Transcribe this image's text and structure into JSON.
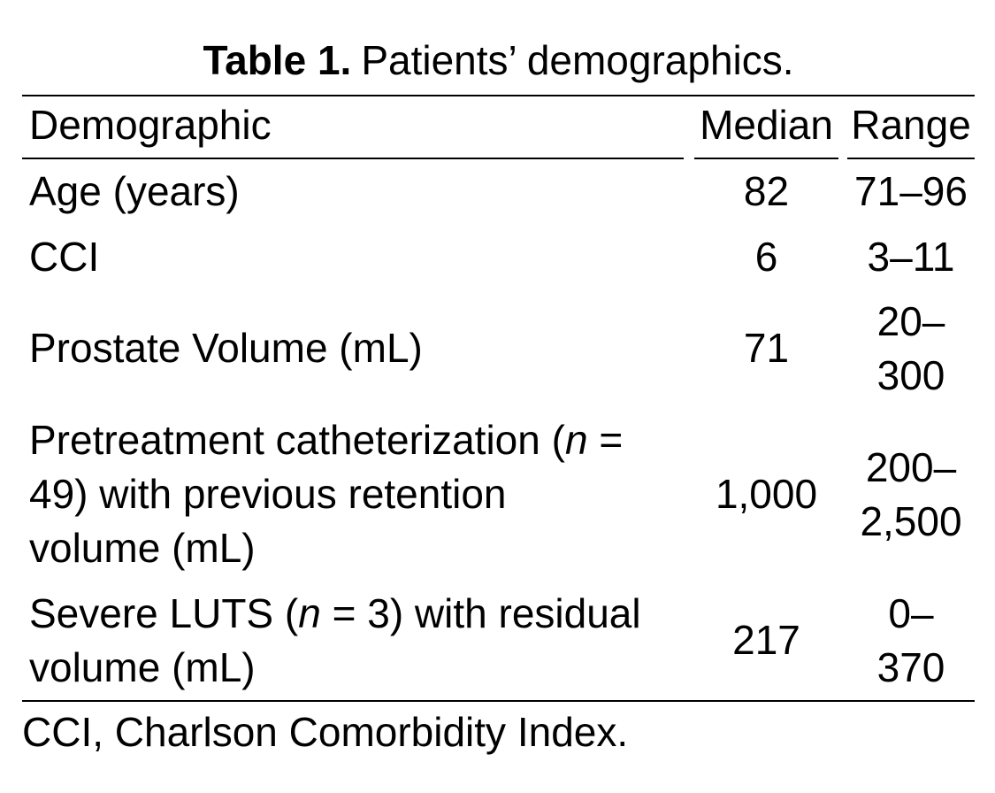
{
  "colors": {
    "background": "#ffffff",
    "text": "#000000",
    "rule": "#000000"
  },
  "title": {
    "label": "Table 1.",
    "rest": "Patients’ demographics."
  },
  "table": {
    "columns": [
      "Demographic",
      "Median",
      "Range"
    ],
    "rows": [
      {
        "demographic": {
          "pre": "Age (years)"
        },
        "median": "82",
        "range": "71–96"
      },
      {
        "demographic": {
          "pre": "CCI"
        },
        "median": "6",
        "range": "3–11"
      },
      {
        "demographic": {
          "pre": "Prostate Volume (mL)"
        },
        "median": "71",
        "range": "20–\n300"
      },
      {
        "demographic": {
          "pre": "Pretreatment catheterization (",
          "n": "n",
          "post": " =\n49) with previous retention\nvolume (mL)"
        },
        "median": "1,000",
        "range": "200–\n2,500"
      },
      {
        "demographic": {
          "pre": "Severe LUTS (",
          "n": "n",
          "post": " = 3) with residual\nvolume (mL)"
        },
        "median": "217",
        "range": "0–\n370"
      }
    ],
    "footnote": "CCI, Charlson Comorbidity Index."
  }
}
